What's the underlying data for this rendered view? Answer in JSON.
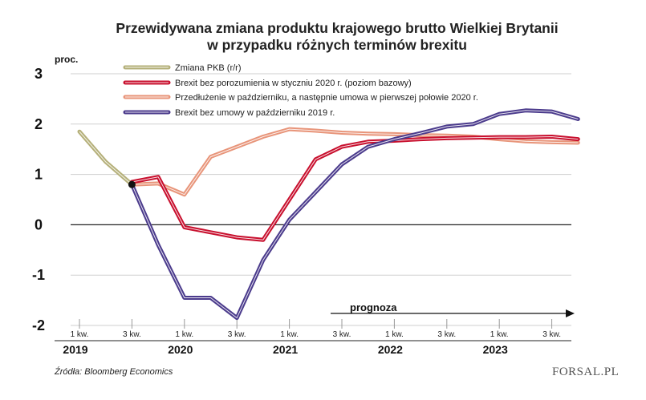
{
  "chart_data": {
    "type": "line",
    "title": [
      "Przewidywana zmiana produktu krajowego brutto Wielkiej Brytanii",
      "w przypadku różnych terminów brexitu"
    ],
    "ylabel": "proc.",
    "ylim": [
      -2,
      3
    ],
    "yticks": [
      3,
      2,
      1,
      0,
      -1,
      -2
    ],
    "x_tick_labels": [
      "1 kw.",
      "3 kw.",
      "1 kw.",
      "3 kw.",
      "1 kw.",
      "3 kw.",
      "1 kw.",
      "3 kw.",
      "1 kw.",
      "3 kw."
    ],
    "x_tick_quarters": [
      "2019Q1",
      "2019Q3",
      "2020Q1",
      "2020Q3",
      "2021Q1",
      "2021Q3",
      "2022Q1",
      "2022Q3",
      "2023Q1",
      "2023Q3"
    ],
    "years": [
      "2019",
      "2020",
      "2021",
      "2022",
      "2023"
    ],
    "forecast_label": "prognoza",
    "legend_position": "top-left",
    "series": [
      {
        "name": "Zmiana PKB (r/r)",
        "color": "#b5b07a",
        "x": [
          "2019Q1",
          "2019Q2",
          "2019Q3"
        ],
        "values": [
          1.85,
          1.25,
          0.8
        ]
      },
      {
        "name": "Brexit bez porozumienia w styczniu 2020 r. (poziom bazowy)",
        "color": "#c8102e",
        "x": [
          "2019Q3",
          "2019Q4",
          "2020Q1",
          "2020Q2",
          "2020Q3",
          "2020Q4",
          "2021Q1",
          "2021Q2",
          "2021Q3",
          "2021Q4",
          "2022Q1",
          "2022Q2",
          "2022Q3",
          "2022Q4",
          "2023Q1",
          "2023Q2",
          "2023Q3",
          "2023Q4"
        ],
        "values": [
          0.85,
          0.95,
          -0.05,
          -0.15,
          -0.25,
          -0.3,
          0.5,
          1.3,
          1.55,
          1.65,
          1.67,
          1.7,
          1.72,
          1.73,
          1.74,
          1.74,
          1.75,
          1.7
        ]
      },
      {
        "name": "Przedłużenie w październiku, a następnie umowa w pierwszej połowie 2020 r.",
        "color": "#e8957a",
        "x": [
          "2019Q3",
          "2019Q4",
          "2020Q1",
          "2020Q2",
          "2020Q3",
          "2020Q4",
          "2021Q1",
          "2021Q2",
          "2021Q3",
          "2021Q4",
          "2022Q1",
          "2022Q2",
          "2022Q3",
          "2022Q4",
          "2023Q1",
          "2023Q2",
          "2023Q3",
          "2023Q4"
        ],
        "values": [
          0.8,
          0.82,
          0.6,
          1.35,
          1.55,
          1.75,
          1.9,
          1.87,
          1.83,
          1.81,
          1.8,
          1.78,
          1.77,
          1.75,
          1.7,
          1.66,
          1.64,
          1.63
        ]
      },
      {
        "name": "Brexit bez umowy w październiku 2019 r.",
        "color": "#4b3b8c",
        "x": [
          "2019Q3",
          "2019Q4",
          "2020Q1",
          "2020Q2",
          "2020Q3",
          "2020Q4",
          "2021Q1",
          "2021Q2",
          "2021Q3",
          "2021Q4",
          "2022Q1",
          "2022Q2",
          "2022Q3",
          "2022Q4",
          "2023Q1",
          "2023Q2",
          "2023Q3",
          "2023Q4"
        ],
        "values": [
          0.8,
          -0.4,
          -1.45,
          -1.45,
          -1.85,
          -0.7,
          0.1,
          0.65,
          1.2,
          1.55,
          1.7,
          1.82,
          1.95,
          2.0,
          2.2,
          2.27,
          2.25,
          2.1
        ]
      }
    ]
  },
  "source": "Źródła: Bloomberg Economics",
  "logo": "FORSAL.PL"
}
